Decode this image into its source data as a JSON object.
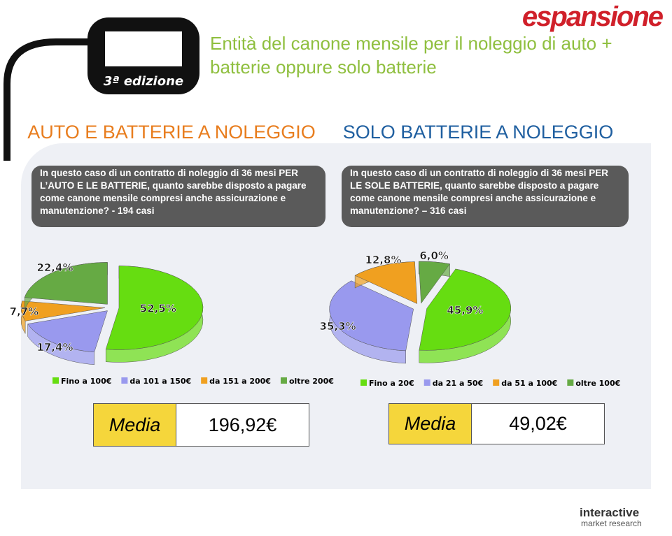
{
  "header": {
    "title": "Entità del canone mensile per il noleggio di auto + batterie oppure solo batterie",
    "brand": "espansione",
    "edition": "3ª edizione"
  },
  "panels": [
    {
      "heading": "AUTO E BATTERIE A NOLEGGIO",
      "question": "In questo caso di un contratto di noleggio di 36 mesi PER L’AUTO E LE BATTERIE, quanto sarebbe disposto a pagare come canone mensile compresi anche assicurazione e manutenzione? - 194 casi",
      "media_label": "Media",
      "media_value": "196,92€"
    },
    {
      "heading": "SOLO BATTERIE A NOLEGGIO",
      "question": "In questo caso di un contratto di noleggio di 36 mesi PER LE SOLE BATTERIE, quanto sarebbe disposto a pagare come canone mensile compresi anche assicurazione e manutenzione? – 316 casi",
      "media_label": "Media",
      "media_value": "49,02€"
    }
  ],
  "chart_data": [
    {
      "type": "pie",
      "categories": [
        "Fino a 100€",
        "da 101 a 150€",
        "da 151 a 200€",
        "oltre 200€"
      ],
      "values": [
        52.5,
        17.4,
        7.7,
        22.4
      ],
      "value_labels": [
        "52,5%",
        "17,4%",
        "7,7%",
        "22,4%"
      ],
      "colors": [
        "#66dd11",
        "#9999ee",
        "#f0a020",
        "#66aa44"
      ]
    },
    {
      "type": "pie",
      "categories": [
        "Fino a 20€",
        "da 21 a 50€",
        "da 51 a 100€",
        "oltre 100€"
      ],
      "values": [
        45.9,
        35.3,
        12.8,
        6.0
      ],
      "value_labels": [
        "45,9%",
        "35,3%",
        "12,8%",
        "6,0%"
      ],
      "colors": [
        "#66dd11",
        "#9999ee",
        "#f0a020",
        "#66aa44"
      ]
    }
  ],
  "footer": {
    "company": "interactive",
    "tagline": "market research"
  }
}
